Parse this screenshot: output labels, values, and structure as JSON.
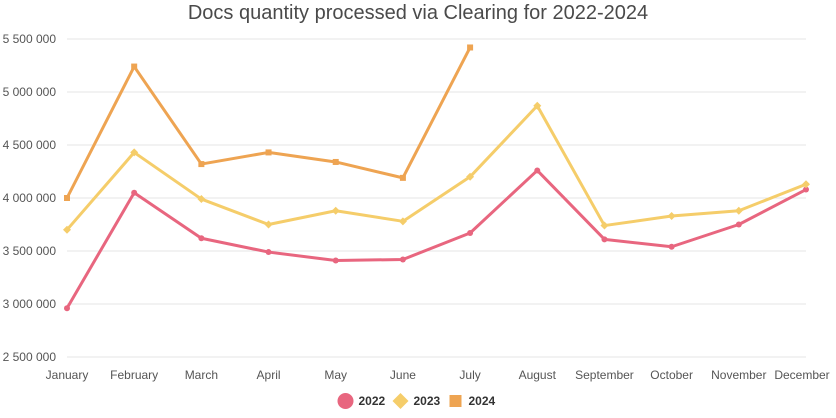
{
  "chart_data": {
    "type": "line",
    "title": "Docs quantity processed via Clearing for 2022-2024",
    "categories": [
      "January",
      "February",
      "March",
      "April",
      "May",
      "June",
      "July",
      "August",
      "September",
      "October",
      "November",
      "December"
    ],
    "yticks": [
      "2 500 000",
      "3 000 000",
      "3 500 000",
      "4 000 000",
      "4 500 000",
      "5 000 000",
      "5 500 000"
    ],
    "ylim": [
      2500000,
      5500000
    ],
    "grid": true,
    "legend_position": "bottom",
    "series": [
      {
        "name": "2022",
        "color": "#e8667f",
        "marker": "circle",
        "values": [
          2960000,
          4050000,
          3620000,
          3490000,
          3410000,
          3420000,
          3670000,
          4260000,
          3610000,
          3540000,
          3750000,
          4080000
        ]
      },
      {
        "name": "2023",
        "color": "#f5cd6a",
        "marker": "diamond",
        "values": [
          3700000,
          4430000,
          3990000,
          3750000,
          3880000,
          3780000,
          4200000,
          4870000,
          3740000,
          3830000,
          3880000,
          4130000
        ]
      },
      {
        "name": "2024",
        "color": "#eea452",
        "marker": "square",
        "values": [
          4000000,
          5240000,
          4320000,
          4430000,
          4340000,
          4190000,
          5420000,
          null,
          null,
          null,
          null,
          null
        ]
      }
    ]
  }
}
